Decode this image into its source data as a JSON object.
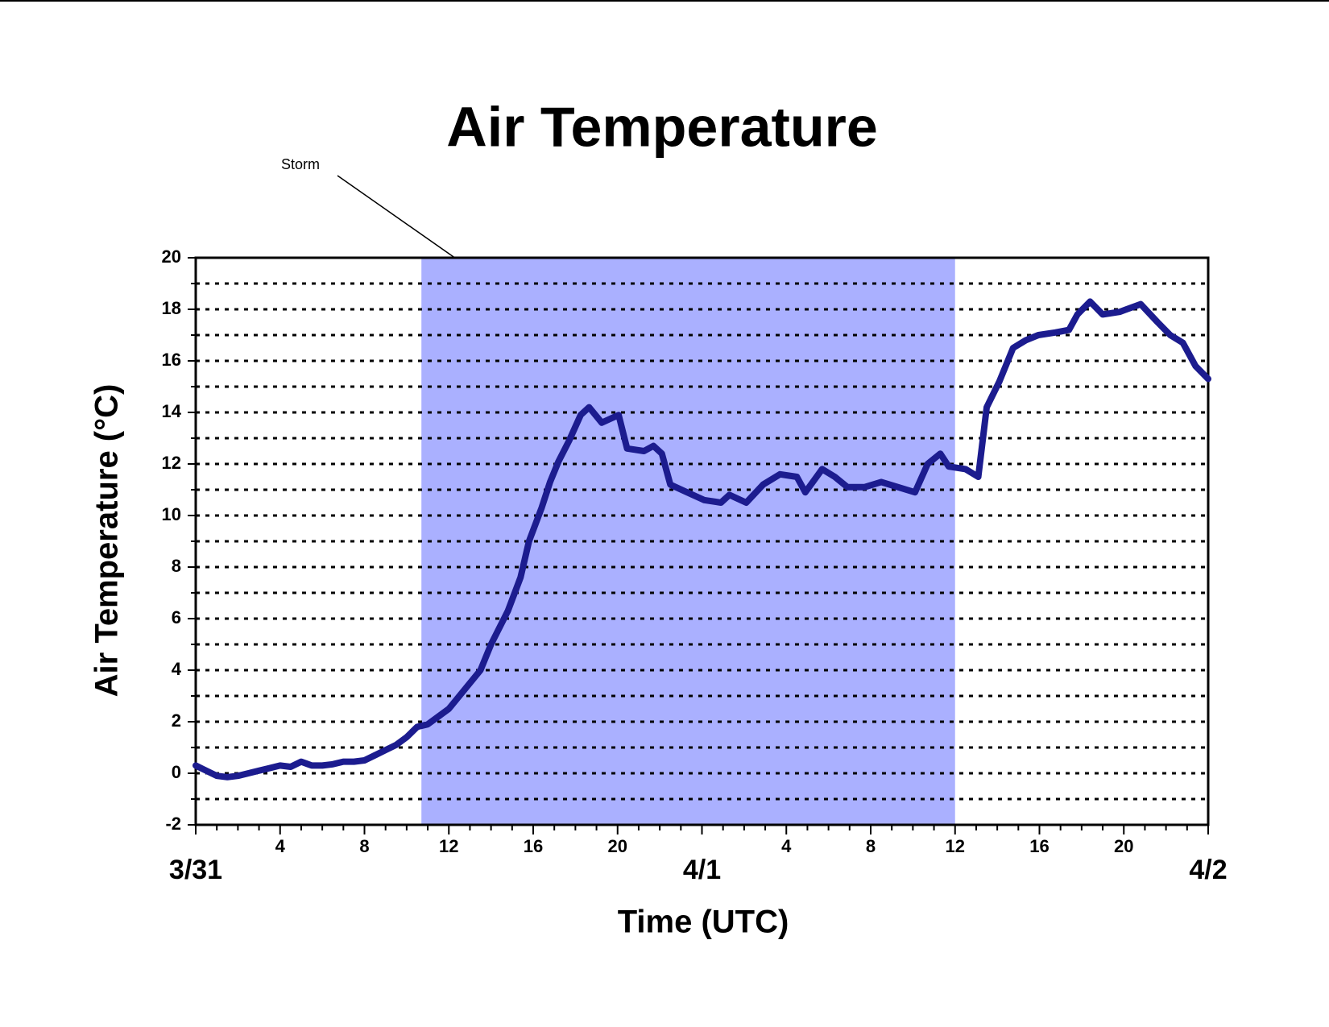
{
  "chart_data": {
    "type": "line",
    "title": "Air Temperature",
    "x_label": "Time (UTC)",
    "y_label": "Air Temperature (°C)",
    "annotation": {
      "label": "Storm",
      "start": 10.7,
      "end": 36,
      "color": "#aab0ff"
    },
    "xlim": [
      0,
      48
    ],
    "xticks": [
      {
        "value": 0,
        "label": "3/31"
      },
      4,
      8,
      12,
      16,
      20,
      {
        "value": 24,
        "label": "4/1"
      },
      {
        "value": 28,
        "label": "4"
      },
      {
        "value": 32,
        "label": "8"
      },
      {
        "value": 36,
        "label": "12"
      },
      {
        "value": 40,
        "label": "16"
      },
      {
        "value": 44,
        "label": "20"
      },
      {
        "value": 48,
        "label": "4/2"
      }
    ],
    "xminorticks": [
      1,
      2,
      3,
      5,
      6,
      7,
      9,
      10,
      11,
      13,
      14,
      15,
      17,
      18,
      19,
      21,
      22,
      23,
      25,
      26,
      27,
      29,
      30,
      31,
      33,
      34,
      35,
      37,
      38,
      39,
      41,
      42,
      43,
      45,
      46,
      47
    ],
    "ylim": [
      -2,
      20
    ],
    "yticks": [
      -2,
      0,
      2,
      4,
      6,
      8,
      10,
      12,
      14,
      16,
      18,
      20
    ],
    "yminorticks": [
      -1,
      1,
      3,
      5,
      7,
      9,
      11,
      13,
      15,
      17,
      19
    ],
    "grid": true,
    "series": [
      {
        "name": "Air Temperature",
        "color": "#1c1c8f",
        "x": [
          0,
          0.5,
          1,
          1.5,
          2,
          2.5,
          3,
          3.5,
          4,
          4.5,
          5,
          5.5,
          6,
          6.5,
          7,
          7.5,
          8,
          8.5,
          9,
          9.5,
          10,
          10.5,
          11,
          11.5,
          12,
          12.5,
          13,
          13.5,
          14,
          14.8,
          15.4,
          15.8,
          16.4,
          16.8,
          17.2,
          17.7,
          18.25,
          18.65,
          19.25,
          20.05,
          20.45,
          21.25,
          21.7,
          22.1,
          22.5,
          23.3,
          24.1,
          24.9,
          25.3,
          26.1,
          26.9,
          27.7,
          28.5,
          28.9,
          29.7,
          30.3,
          30.9,
          31.7,
          32.5,
          33.3,
          34.1,
          34.7,
          35.3,
          35.7,
          36.5,
          37.1,
          37.5,
          38.1,
          38.75,
          39.35,
          39.95,
          40.75,
          41.4,
          41.8,
          42.4,
          43,
          43.8,
          44.8,
          45.6,
          46.2,
          46.8,
          47.4,
          48
        ],
        "values": [
          0.3,
          0.1,
          -0.1,
          -0.15,
          -0.1,
          0,
          0.1,
          0.2,
          0.3,
          0.25,
          0.45,
          0.3,
          0.3,
          0.35,
          0.45,
          0.45,
          0.5,
          0.7,
          0.9,
          1.1,
          1.4,
          1.8,
          1.9,
          2.2,
          2.5,
          3,
          3.5,
          4,
          5,
          6.3,
          7.6,
          9,
          10.3,
          11.3,
          12.1,
          12.9,
          13.9,
          14.2,
          13.6,
          13.9,
          12.6,
          12.5,
          12.7,
          12.4,
          11.2,
          10.9,
          10.6,
          10.5,
          10.8,
          10.5,
          11.2,
          11.6,
          11.5,
          10.9,
          11.8,
          11.5,
          11.1,
          11.1,
          11.3,
          11.1,
          10.9,
          12,
          12.4,
          11.9,
          11.8,
          11.5,
          14.2,
          15.2,
          16.5,
          16.8,
          17,
          17.1,
          17.2,
          17.8,
          18.3,
          17.8,
          17.9,
          18.2,
          17.5,
          17,
          16.7,
          15.8,
          15.3
        ]
      }
    ]
  }
}
